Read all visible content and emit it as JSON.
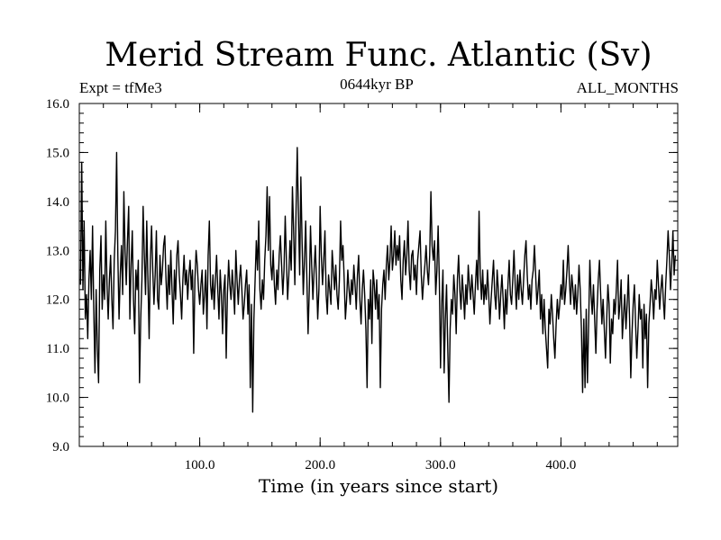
{
  "chart_data": {
    "type": "line",
    "title": "Merid Stream Func. Atlantic (Sv)",
    "subtitle_left": "Expt = tfMe3",
    "subtitle_center": "0644kyr BP",
    "subtitle_right": "ALL_MONTHS",
    "xlabel": "Time (in years since start)",
    "ylabel": "",
    "xlim": [
      0,
      497
    ],
    "ylim": [
      9.0,
      16.0
    ],
    "x_ticks": [
      100,
      200,
      300,
      400
    ],
    "x_tick_labels": [
      "100.0",
      "200.0",
      "300.0",
      "400.0"
    ],
    "y_ticks": [
      9.0,
      10.0,
      11.0,
      12.0,
      13.0,
      14.0,
      15.0,
      16.0
    ],
    "y_tick_labels": [
      "9.0",
      "10.0",
      "11.0",
      "12.0",
      "13.0",
      "14.0",
      "15.0",
      "16.0"
    ],
    "grid": false,
    "line_color": "#000000",
    "series": [
      {
        "x_start": 1,
        "x_step": 1,
        "values": [
          12.3,
          14.8,
          12.2,
          13.6,
          11.6,
          12.1,
          11.2,
          12.4,
          13.0,
          12.0,
          13.5,
          11.8,
          10.5,
          12.2,
          11.0,
          10.3,
          12.6,
          13.3,
          11.8,
          12.5,
          12.0,
          13.6,
          12.3,
          11.6,
          12.4,
          12.9,
          12.0,
          11.4,
          12.8,
          13.4,
          15.0,
          12.9,
          11.6,
          12.5,
          13.1,
          12.1,
          14.2,
          13.0,
          12.3,
          13.2,
          13.9,
          11.6,
          12.7,
          13.4,
          12.0,
          11.3,
          12.6,
          12.2,
          12.8,
          10.3,
          11.6,
          12.4,
          13.9,
          12.9,
          12.1,
          13.6,
          12.4,
          11.2,
          12.8,
          13.5,
          12.6,
          11.9,
          12.5,
          13.4,
          12.0,
          11.8,
          12.9,
          12.3,
          12.6,
          13.1,
          13.3,
          12.4,
          11.8,
          12.7,
          12.1,
          13.0,
          12.2,
          11.5,
          12.6,
          12.0,
          12.9,
          13.2,
          12.5,
          12.1,
          11.6,
          12.4,
          12.9,
          12.3,
          12.6,
          12.0,
          12.5,
          12.8,
          12.2,
          12.6,
          10.9,
          12.4,
          13.0,
          12.7,
          12.2,
          11.9,
          12.3,
          12.6,
          11.7,
          12.1,
          12.6,
          11.4,
          12.9,
          13.6,
          12.3,
          12.0,
          12.5,
          11.8,
          12.4,
          12.9,
          12.2,
          11.6,
          12.6,
          12.1,
          11.3,
          12.2,
          12.5,
          10.8,
          12.1,
          12.8,
          12.3,
          12.0,
          12.6,
          12.2,
          11.7,
          13.0,
          12.4,
          11.9,
          12.4,
          12.7,
          12.2,
          11.6,
          11.9,
          12.3,
          12.6,
          11.7,
          12.3,
          10.2,
          11.9,
          9.7,
          11.6,
          12.4,
          13.2,
          12.6,
          13.6,
          12.2,
          11.8,
          12.4,
          12.0,
          12.8,
          13.3,
          14.3,
          13.0,
          14.1,
          12.7,
          12.4,
          13.0,
          12.3,
          11.9,
          12.6,
          12.2,
          12.9,
          13.3,
          12.7,
          12.1,
          12.6,
          13.7,
          12.8,
          12.0,
          12.5,
          13.2,
          12.6,
          14.3,
          13.4,
          12.3,
          13.8,
          15.1,
          13.7,
          12.5,
          14.5,
          13.2,
          12.1,
          12.8,
          13.6,
          12.4,
          11.3,
          12.2,
          13.5,
          12.7,
          12.0,
          12.6,
          13.1,
          12.4,
          11.6,
          12.2,
          13.9,
          12.9,
          12.3,
          12.8,
          13.4,
          12.1,
          11.7,
          12.5,
          12.2,
          11.9,
          13.0,
          12.6,
          12.2,
          12.7,
          12.1,
          11.8,
          12.4,
          13.6,
          12.8,
          13.1,
          12.4,
          11.6,
          12.0,
          12.6,
          12.2,
          11.9,
          12.4,
          12.1,
          12.7,
          12.3,
          11.8,
          12.5,
          12.9,
          12.0,
          11.5,
          12.2,
          12.6,
          12.1,
          11.4,
          10.2,
          12.0,
          11.6,
          12.4,
          11.1,
          12.6,
          12.3,
          11.8,
          12.4,
          11.6,
          12.1,
          10.2,
          11.8,
          12.3,
          12.6,
          12.0,
          12.7,
          13.1,
          12.4,
          12.8,
          13.5,
          12.6,
          12.9,
          13.4,
          12.7,
          13.1,
          12.8,
          13.3,
          12.4,
          12.0,
          12.8,
          13.2,
          12.5,
          12.9,
          13.6,
          12.6,
          12.2,
          12.9,
          13.0,
          12.4,
          12.7,
          12.1,
          12.8,
          13.1,
          13.4,
          12.5,
          12.0,
          12.4,
          12.7,
          13.1,
          12.6,
          12.3,
          12.9,
          14.2,
          13.1,
          12.8,
          13.2,
          12.1,
          12.6,
          13.5,
          12.4,
          10.6,
          11.9,
          12.6,
          10.5,
          11.6,
          12.3,
          11.0,
          9.9,
          11.4,
          12.0,
          11.7,
          12.5,
          12.1,
          11.3,
          12.4,
          12.9,
          12.2,
          11.8,
          12.5,
          12.1,
          11.6,
          12.3,
          11.9,
          12.7,
          12.3,
          12.0,
          12.5,
          12.1,
          11.7,
          12.3,
          12.8,
          12.2,
          13.8,
          12.5,
          12.0,
          12.6,
          11.9,
          12.3,
          12.0,
          12.6,
          12.1,
          11.5,
          12.0,
          12.4,
          12.8,
          12.1,
          11.8,
          12.6,
          12.2,
          11.6,
          12.1,
          12.5,
          12.0,
          11.4,
          12.2,
          11.7,
          12.3,
          12.8,
          12.1,
          11.9,
          12.4,
          13.0,
          12.3,
          11.8,
          12.5,
          12.0,
          12.6,
          12.2,
          11.9,
          12.4,
          12.9,
          13.2,
          12.5,
          12.0,
          12.3,
          11.8,
          12.4,
          12.6,
          13.1,
          12.5,
          11.9,
          12.2,
          12.6,
          11.6,
          12.1,
          11.3,
          12.0,
          11.4,
          11.0,
          10.6,
          11.8,
          11.5,
          12.1,
          11.7,
          11.2,
          10.8,
          11.5,
          12.0,
          11.6,
          11.9,
          12.3,
          12.0,
          12.8,
          11.9,
          12.2,
          12.6,
          13.1,
          12.4,
          11.9,
          12.5,
          12.2,
          11.8,
          12.3,
          11.7,
          12.1,
          12.7,
          12.2,
          11.4,
          10.1,
          11.6,
          10.2,
          11.8,
          10.3,
          11.5,
          12.8,
          12.1,
          11.7,
          12.3,
          11.6,
          10.9,
          11.8,
          12.4,
          12.8,
          12.1,
          11.5,
          12.0,
          11.4,
          10.8,
          11.6,
          12.3,
          11.9,
          10.7,
          11.6,
          11.3,
          12.0,
          11.7,
          12.2,
          12.8,
          11.6,
          11.9,
          12.4,
          11.2,
          11.7,
          12.1,
          11.4,
          11.9,
          12.5,
          11.6,
          10.4,
          11.3,
          11.9,
          12.3,
          11.5,
          10.8,
          11.4,
          12.1,
          11.6,
          11.8,
          10.6,
          11.9,
          11.2,
          11.7,
          10.2,
          11.5,
          11.9,
          12.4,
          12.1,
          11.6,
          12.2,
          12.0,
          12.8,
          12.3,
          11.8,
          12.2,
          12.5,
          12.0,
          11.6,
          12.3,
          12.8,
          13.4,
          12.9,
          12.2,
          12.7,
          13.4,
          12.5,
          12.9
        ]
      }
    ]
  }
}
